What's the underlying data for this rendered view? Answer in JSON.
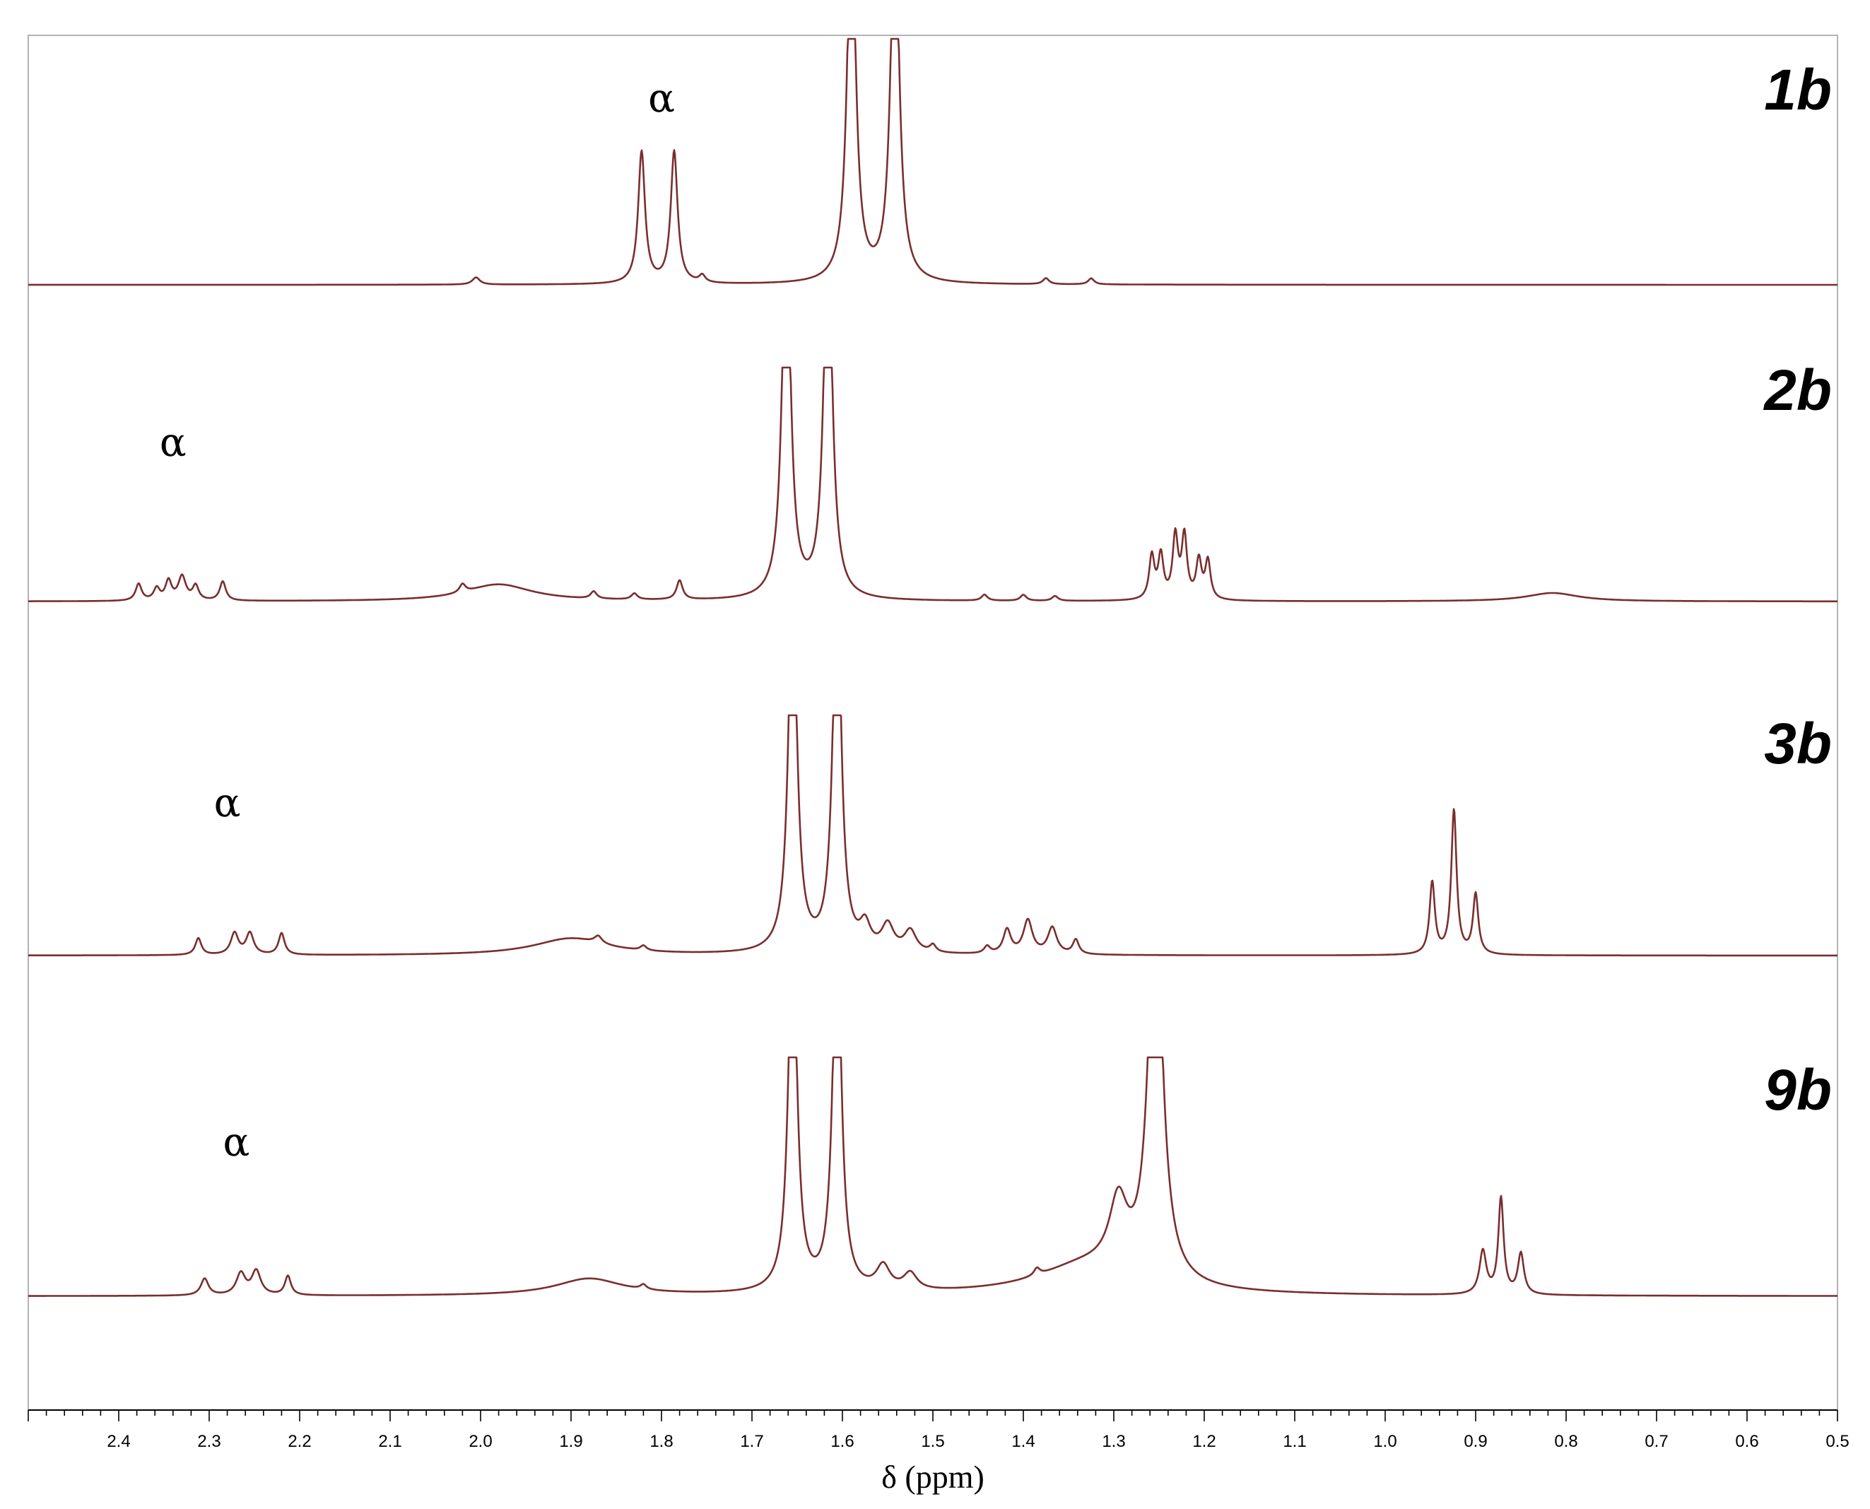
{
  "chart_data": {
    "type": "line",
    "title": "",
    "xlabel": "δ (ppm)",
    "ylabel": "",
    "x_reversed": true,
    "xlim": [
      2.5,
      0.5
    ],
    "x_ticks": [
      "2.4",
      "2.3",
      "2.2",
      "2.1",
      "2.0",
      "1.9",
      "1.8",
      "1.7",
      "1.6",
      "1.5",
      "1.4",
      "1.3",
      "1.2",
      "1.1",
      "1.0",
      "0.9",
      "0.8",
      "0.7",
      "0.6",
      "0.5"
    ],
    "minor_tick_step": 0.02,
    "grid": false,
    "line_color": "#7a2e2e",
    "series": [
      {
        "name": "1b",
        "annotation": "α",
        "annotation_x": 1.8,
        "peaks": [
          {
            "x": 2.005,
            "h": 0.03,
            "w": 0.005
          },
          {
            "x": 1.822,
            "h": 0.55,
            "w": 0.0045
          },
          {
            "x": 1.786,
            "h": 0.55,
            "w": 0.0045
          },
          {
            "x": 1.755,
            "h": 0.03,
            "w": 0.004
          },
          {
            "x": 1.59,
            "h": 1.6,
            "w": 0.0055
          },
          {
            "x": 1.542,
            "h": 1.6,
            "w": 0.0055
          },
          {
            "x": 1.375,
            "h": 0.025,
            "w": 0.004
          },
          {
            "x": 1.325,
            "h": 0.025,
            "w": 0.004
          }
        ]
      },
      {
        "name": "2b",
        "annotation": "α",
        "annotation_x": 2.34,
        "peaks": [
          {
            "x": 2.378,
            "h": 0.07,
            "w": 0.004
          },
          {
            "x": 2.358,
            "h": 0.05,
            "w": 0.004
          },
          {
            "x": 2.345,
            "h": 0.08,
            "w": 0.004
          },
          {
            "x": 2.33,
            "h": 0.1,
            "w": 0.005
          },
          {
            "x": 2.315,
            "h": 0.06,
            "w": 0.004
          },
          {
            "x": 2.285,
            "h": 0.08,
            "w": 0.004
          },
          {
            "x": 2.02,
            "h": 0.035,
            "w": 0.004
          },
          {
            "x": 1.98,
            "h": 0.07,
            "w": 0.045
          },
          {
            "x": 1.875,
            "h": 0.03,
            "w": 0.004
          },
          {
            "x": 1.83,
            "h": 0.025,
            "w": 0.004
          },
          {
            "x": 1.78,
            "h": 0.08,
            "w": 0.004
          },
          {
            "x": 1.662,
            "h": 1.6,
            "w": 0.0055
          },
          {
            "x": 1.616,
            "h": 1.6,
            "w": 0.0055
          },
          {
            "x": 1.443,
            "h": 0.025,
            "w": 0.004
          },
          {
            "x": 1.4,
            "h": 0.025,
            "w": 0.004
          },
          {
            "x": 1.365,
            "h": 0.02,
            "w": 0.004
          },
          {
            "x": 1.258,
            "h": 0.18,
            "w": 0.0035
          },
          {
            "x": 1.248,
            "h": 0.18,
            "w": 0.0035
          },
          {
            "x": 1.232,
            "h": 0.26,
            "w": 0.0035
          },
          {
            "x": 1.222,
            "h": 0.26,
            "w": 0.0035
          },
          {
            "x": 1.206,
            "h": 0.16,
            "w": 0.0035
          },
          {
            "x": 1.196,
            "h": 0.16,
            "w": 0.0035
          },
          {
            "x": 0.815,
            "h": 0.035,
            "w": 0.035
          }
        ]
      },
      {
        "name": "3b",
        "annotation": "α",
        "annotation_x": 2.28,
        "peaks": [
          {
            "x": 2.312,
            "h": 0.07,
            "w": 0.004
          },
          {
            "x": 2.272,
            "h": 0.09,
            "w": 0.005
          },
          {
            "x": 2.255,
            "h": 0.09,
            "w": 0.005
          },
          {
            "x": 2.22,
            "h": 0.09,
            "w": 0.004
          },
          {
            "x": 1.9,
            "h": 0.07,
            "w": 0.05
          },
          {
            "x": 1.87,
            "h": 0.03,
            "w": 0.005
          },
          {
            "x": 1.82,
            "h": 0.02,
            "w": 0.004
          },
          {
            "x": 1.655,
            "h": 1.6,
            "w": 0.0055
          },
          {
            "x": 1.606,
            "h": 1.6,
            "w": 0.0055
          },
          {
            "x": 1.575,
            "h": 0.1,
            "w": 0.007
          },
          {
            "x": 1.55,
            "h": 0.11,
            "w": 0.008
          },
          {
            "x": 1.525,
            "h": 0.09,
            "w": 0.008
          },
          {
            "x": 1.5,
            "h": 0.03,
            "w": 0.004
          },
          {
            "x": 1.44,
            "h": 0.03,
            "w": 0.004
          },
          {
            "x": 1.418,
            "h": 0.1,
            "w": 0.005
          },
          {
            "x": 1.395,
            "h": 0.14,
            "w": 0.006
          },
          {
            "x": 1.368,
            "h": 0.11,
            "w": 0.006
          },
          {
            "x": 1.342,
            "h": 0.06,
            "w": 0.004
          },
          {
            "x": 0.948,
            "h": 0.3,
            "w": 0.0035
          },
          {
            "x": 0.924,
            "h": 0.6,
            "w": 0.0035
          },
          {
            "x": 0.9,
            "h": 0.25,
            "w": 0.0035
          }
        ]
      },
      {
        "name": "9b",
        "annotation": "α",
        "annotation_x": 2.27,
        "peaks": [
          {
            "x": 2.305,
            "h": 0.07,
            "w": 0.005
          },
          {
            "x": 2.265,
            "h": 0.09,
            "w": 0.006
          },
          {
            "x": 2.248,
            "h": 0.1,
            "w": 0.006
          },
          {
            "x": 2.213,
            "h": 0.08,
            "w": 0.004
          },
          {
            "x": 1.88,
            "h": 0.07,
            "w": 0.045
          },
          {
            "x": 1.82,
            "h": 0.02,
            "w": 0.004
          },
          {
            "x": 1.655,
            "h": 1.6,
            "w": 0.0055
          },
          {
            "x": 1.606,
            "h": 1.6,
            "w": 0.0055
          },
          {
            "x": 1.555,
            "h": 0.1,
            "w": 0.009
          },
          {
            "x": 1.525,
            "h": 0.07,
            "w": 0.009
          },
          {
            "x": 1.385,
            "h": 0.03,
            "w": 0.004
          },
          {
            "x": 1.33,
            "h": 0.12,
            "w": 0.07
          },
          {
            "x": 1.295,
            "h": 0.28,
            "w": 0.012
          },
          {
            "x": 1.254,
            "h": 1.7,
            "w": 0.009
          },
          {
            "x": 0.892,
            "h": 0.18,
            "w": 0.0045
          },
          {
            "x": 0.872,
            "h": 0.4,
            "w": 0.0035
          },
          {
            "x": 0.85,
            "h": 0.17,
            "w": 0.004
          }
        ]
      }
    ]
  }
}
